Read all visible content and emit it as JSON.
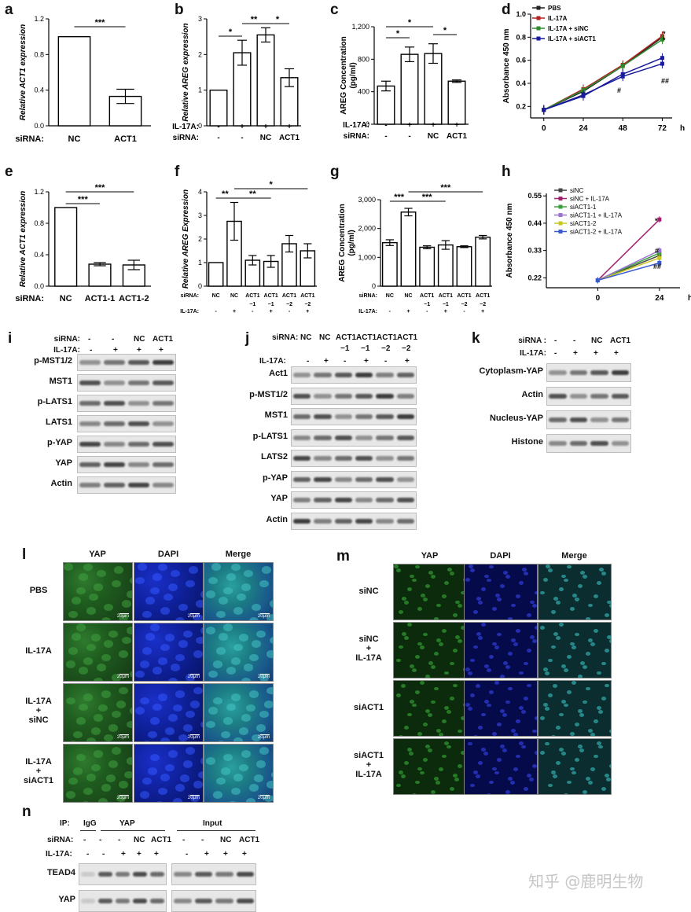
{
  "panels": {
    "a": "a",
    "b": "b",
    "c": "c",
    "d": "d",
    "e": "e",
    "f": "f",
    "g": "g",
    "h": "h",
    "i": "i",
    "j": "j",
    "k": "k",
    "l": "l",
    "m": "m",
    "n": "n"
  },
  "chart_a": {
    "type": "bar",
    "ylabel": "Relative ACT1 expression",
    "yticks": [
      "0.0",
      "0.4",
      "0.8",
      "1.2"
    ],
    "ylim": [
      0,
      1.2
    ],
    "row_label": "siRNA:",
    "categories": [
      "NC",
      "ACT1"
    ],
    "values": [
      1.0,
      0.33
    ],
    "errors": [
      0,
      0.08
    ],
    "sig": [
      "***"
    ]
  },
  "chart_b": {
    "type": "bar",
    "ylabel": "Relative AREG expression",
    "yticks": [
      "0",
      "1",
      "2",
      "3"
    ],
    "ylim": [
      0,
      3
    ],
    "row_labels": [
      "IL-17A:",
      "siRNA:"
    ],
    "il17a": [
      "-",
      "+",
      "+",
      "+"
    ],
    "sirna": [
      "-",
      "-",
      "NC",
      "ACT1"
    ],
    "values": [
      1.0,
      2.05,
      2.55,
      1.35
    ],
    "errors": [
      0,
      0.35,
      0.2,
      0.25
    ],
    "sig": [
      "*",
      "**",
      "*"
    ]
  },
  "chart_c": {
    "type": "bar",
    "ylabel": "AREG Concentration",
    "ylabel2": "(pg/ml)",
    "yticks": [
      "0",
      "400",
      "800",
      "1,200"
    ],
    "ylim": [
      0,
      1200
    ],
    "row_labels": [
      "IL-17A:",
      "siRNA:"
    ],
    "il17a": [
      "-",
      "+",
      "+",
      "+"
    ],
    "sirna": [
      "-",
      "-",
      "NC",
      "ACT1"
    ],
    "values": [
      470,
      860,
      870,
      530
    ],
    "errors": [
      60,
      90,
      120,
      15
    ],
    "sig": [
      "*",
      "*",
      "*"
    ]
  },
  "chart_d": {
    "type": "line",
    "ylabel": "Absorbance 450 nm",
    "yticks": [
      "0.2",
      "0.4",
      "0.6",
      "0.8",
      "1.0"
    ],
    "xticks": [
      "0",
      "24",
      "48",
      "72"
    ],
    "xunit": "h",
    "ylim": [
      0.1,
      1.0
    ],
    "x": [
      0,
      24,
      48,
      72
    ],
    "series": [
      {
        "name": "PBS",
        "color": "#222222",
        "values": [
          0.17,
          0.33,
          0.55,
          0.8
        ]
      },
      {
        "name": "IL-17A",
        "color": "#b22222",
        "values": [
          0.17,
          0.35,
          0.56,
          0.81
        ]
      },
      {
        "name": "IL-17A + siNC",
        "color": "#2e8b2e",
        "values": [
          0.17,
          0.34,
          0.55,
          0.78
        ]
      },
      {
        "name": "IL-17A + siACT1",
        "color": "#1a1a9a",
        "values": [
          0.17,
          0.3,
          0.46,
          0.57
        ]
      }
    ],
    "extra_series": {
      "name": "",
      "color": "#1a1a9a",
      "values": [
        0.17,
        0.29,
        0.48,
        0.62
      ]
    },
    "annotations": [
      "*",
      "*",
      "#",
      "##"
    ]
  },
  "chart_e": {
    "type": "bar",
    "ylabel": "Relative ACT1 expression",
    "yticks": [
      "0.0",
      "0.4",
      "0.8",
      "1.2"
    ],
    "ylim": [
      0,
      1.2
    ],
    "row_label": "siRNA:",
    "categories": [
      "NC",
      "ACT1-1",
      "ACT1-2"
    ],
    "values": [
      1.0,
      0.28,
      0.27
    ],
    "errors": [
      0,
      0.02,
      0.06
    ],
    "sig": [
      "***",
      "***"
    ]
  },
  "chart_f": {
    "type": "bar",
    "ylabel": "Relative AREG Expression",
    "yticks": [
      "0",
      "1",
      "2",
      "3",
      "4"
    ],
    "ylim": [
      0,
      4
    ],
    "row_labels": [
      "siRNA:",
      "IL-17A:"
    ],
    "sirna": [
      "NC",
      "NC",
      "ACT1\n−1",
      "ACT1\n−1",
      "ACT1\n−2",
      "ACT1\n−2"
    ],
    "il17a": [
      "-",
      "+",
      "-",
      "+",
      "-",
      "+"
    ],
    "values": [
      1.0,
      2.75,
      1.1,
      1.05,
      1.8,
      1.5
    ],
    "errors": [
      0,
      0.8,
      0.2,
      0.25,
      0.35,
      0.3
    ],
    "sig": [
      "**",
      "**",
      "*"
    ]
  },
  "chart_g": {
    "type": "bar",
    "ylabel": "AREG Concentration",
    "ylabel2": "(pg/ml)",
    "yticks": [
      "0",
      "1,000",
      "2,000",
      "3,000"
    ],
    "ylim": [
      0,
      3000
    ],
    "row_labels": [
      "siRNA:",
      "IL-17A:"
    ],
    "sirna": [
      "NC",
      "NC",
      "ACT1\n−1",
      "ACT1\n−1",
      "ACT1\n−2",
      "ACT1\n−2"
    ],
    "il17a": [
      "-",
      "+",
      "-",
      "+",
      "-",
      "+"
    ],
    "values": [
      1510,
      2570,
      1350,
      1430,
      1370,
      1700
    ],
    "errors": [
      100,
      130,
      50,
      150,
      30,
      60
    ],
    "sig": [
      "***",
      "***",
      "***"
    ]
  },
  "chart_h": {
    "type": "line",
    "ylabel": "Absorbance 450 nm",
    "yticks": [
      "0.22",
      "0.33",
      "0.44",
      "0.55"
    ],
    "xticks": [
      "0",
      "24"
    ],
    "xunit": "h",
    "ylim": [
      0.18,
      0.56
    ],
    "x": [
      0,
      24
    ],
    "series": [
      {
        "name": "siNC",
        "color": "#444444",
        "values": [
          0.21,
          0.31
        ]
      },
      {
        "name": "siNC + IL-17A",
        "color": "#a0226e",
        "values": [
          0.21,
          0.455
        ]
      },
      {
        "name": "siACT1-1",
        "color": "#3aa03a",
        "values": [
          0.21,
          0.32
        ]
      },
      {
        "name": "siACT1-1 + IL-17A",
        "color": "#9a72d0",
        "values": [
          0.21,
          0.33
        ]
      },
      {
        "name": "siACT1-2",
        "color": "#c8c820",
        "values": [
          0.21,
          0.3
        ]
      },
      {
        "name": "siACT1-2 + IL-17A",
        "color": "#3a5ad0",
        "values": [
          0.21,
          0.28
        ]
      }
    ],
    "annotations": [
      "*",
      "#",
      "##"
    ]
  },
  "blot_i": {
    "hdr_rows": [
      {
        "label": "siRNA:",
        "cells": [
          "-",
          "-",
          "NC",
          "ACT1"
        ]
      },
      {
        "label": "IL-17A:",
        "cells": [
          "-",
          "+",
          "+",
          "+"
        ]
      }
    ],
    "rows": [
      "p-MST1/2",
      "MST1",
      "p-LATS1",
      "LATS1",
      "p-YAP",
      "YAP",
      "Actin"
    ]
  },
  "blot_j": {
    "hdr_label1": "siRNA:",
    "hdr_cells1": [
      "NC",
      "NC",
      "ACT1",
      "ACT1",
      "ACT1",
      "ACT1"
    ],
    "hdr_sub": [
      "−1",
      "−1",
      "−2",
      "−2"
    ],
    "hdr_label2": "IL-17A:",
    "hdr_cells2": [
      "-",
      "+",
      "-",
      "+",
      "-",
      "+"
    ],
    "rows": [
      "Act1",
      "p-MST1/2",
      "MST1",
      "p-LATS1",
      "LATS2",
      "p-YAP",
      "YAP",
      "Actin"
    ]
  },
  "blot_k": {
    "hdr_rows": [
      {
        "label": "siRNA :",
        "cells": [
          "-",
          "-",
          "NC",
          "ACT1"
        ]
      },
      {
        "label": "IL-17A:",
        "cells": [
          "-",
          "+",
          "+",
          "+"
        ]
      }
    ],
    "rows": [
      "Cytoplasm-YAP",
      "Actin",
      "Nucleus-YAP",
      "Histone"
    ]
  },
  "micro_l": {
    "cols": [
      "YAP",
      "DAPI",
      "Merge"
    ],
    "rows": [
      "PBS",
      "IL-17A",
      "IL-17A\n+\nsiNC",
      "IL-17A\n+\nsiACT1"
    ],
    "scale": "20μm"
  },
  "micro_m": {
    "cols": [
      "YAP",
      "DAPI",
      "Merge"
    ],
    "rows": [
      "siNC",
      "siNC\n+\nIL-17A",
      "siACT1",
      "siACT1\n+\nIL-17A"
    ]
  },
  "blot_n": {
    "ip_label": "IP:",
    "igg": "IgG",
    "yap": "YAP",
    "input": "Input",
    "sirna_label": "siRNA:",
    "il17a_label": "IL-17A:",
    "sirna_cells": [
      "-",
      "-",
      "-",
      "NC",
      "ACT1",
      "-",
      "-",
      "NC",
      "ACT1"
    ],
    "il17a_cells": [
      "-",
      "-",
      "+",
      "+",
      "+",
      "-",
      "+",
      "+",
      "+"
    ],
    "rows": [
      "TEAD4",
      "YAP"
    ]
  },
  "watermark": "知乎 @鹿明生物"
}
